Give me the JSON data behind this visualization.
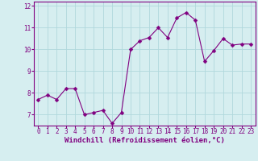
{
  "x": [
    0,
    1,
    2,
    3,
    4,
    5,
    6,
    7,
    8,
    9,
    10,
    11,
    12,
    13,
    14,
    15,
    16,
    17,
    18,
    19,
    20,
    21,
    22,
    23
  ],
  "y": [
    7.7,
    7.9,
    7.7,
    8.2,
    8.2,
    7.0,
    7.1,
    7.2,
    6.6,
    7.1,
    10.0,
    10.4,
    10.55,
    11.0,
    10.55,
    11.45,
    11.7,
    11.35,
    9.45,
    9.95,
    10.5,
    10.2,
    10.25,
    10.25
  ],
  "line_color": "#800080",
  "marker": "D",
  "marker_size": 2.5,
  "bg_color": "#d6eef0",
  "grid_color": "#b0d8dc",
  "xlabel": "Windchill (Refroidissement éolien,°C)",
  "ylim": [
    6.5,
    12.2
  ],
  "xlim": [
    -0.5,
    23.5
  ],
  "yticks": [
    7,
    8,
    9,
    10,
    11,
    12
  ],
  "xticks": [
    0,
    1,
    2,
    3,
    4,
    5,
    6,
    7,
    8,
    9,
    10,
    11,
    12,
    13,
    14,
    15,
    16,
    17,
    18,
    19,
    20,
    21,
    22,
    23
  ],
  "tick_fontsize": 5.5,
  "xlabel_fontsize": 6.5,
  "spine_color": "#800080"
}
